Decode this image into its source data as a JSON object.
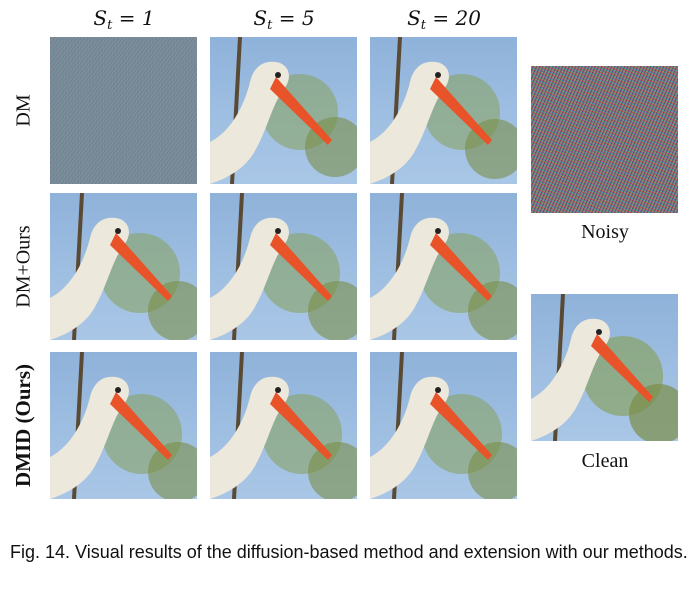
{
  "figure": {
    "column_headers": [
      {
        "symbol": "S",
        "subscript": "t",
        "value": "= 1"
      },
      {
        "symbol": "S",
        "subscript": "t",
        "value": "= 5"
      },
      {
        "symbol": "S",
        "subscript": "t",
        "value": "= 20"
      }
    ],
    "row_labels": [
      "DM",
      "DM+Ours",
      "DMID (Ours)"
    ],
    "side_labels": {
      "noisy": "Noisy",
      "clean": "Clean"
    },
    "caption": "Fig. 14. Visual results of the diffusion-based method and extension with our methods."
  },
  "colors": {
    "sky": "#9fbfe2",
    "bird_body": "#ece8db",
    "beak": "#e8532a",
    "foliage": "#7a8d47",
    "branch": "#5a4a34"
  }
}
